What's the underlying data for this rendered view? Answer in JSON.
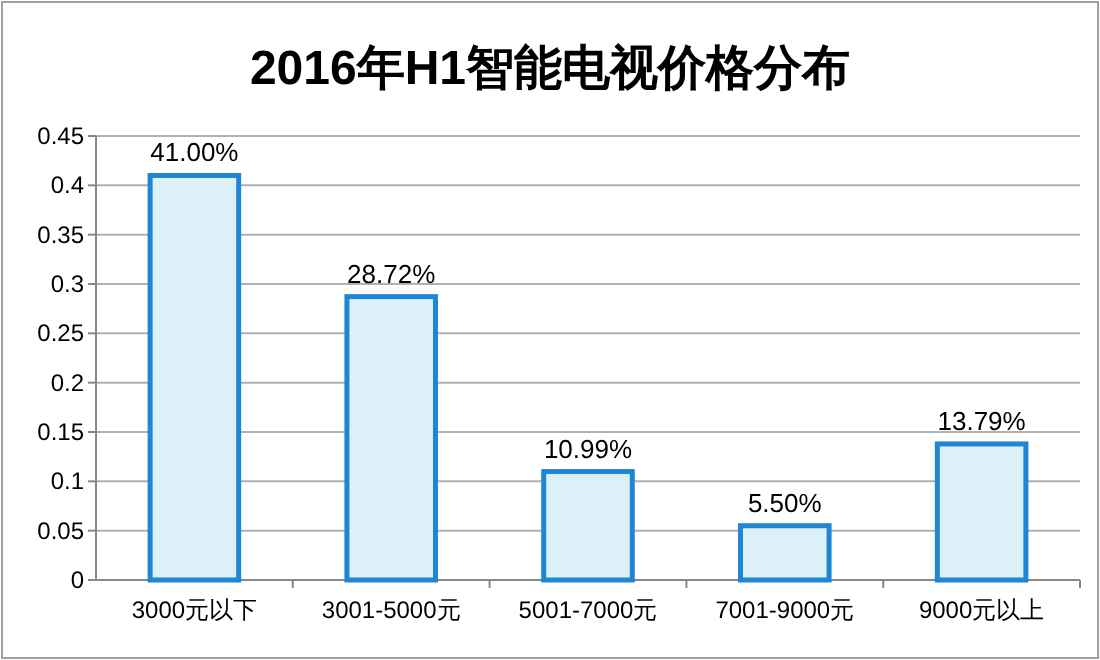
{
  "chart_data": {
    "type": "bar",
    "title": "2016年H1智能电视价格分布",
    "categories": [
      "3000元以下",
      "3001-5000元",
      "5001-7000元",
      "7001-9000元",
      "9000元以上"
    ],
    "values": [
      0.41,
      0.2872,
      0.1099,
      0.055,
      0.1379
    ],
    "value_labels": [
      "41.00%",
      "28.72%",
      "10.99%",
      "5.50%",
      "13.79%"
    ],
    "color": "#dcf0f7",
    "ylim": [
      0,
      0.45
    ],
    "yticks": [
      0,
      0.05,
      0.1,
      0.15,
      0.2,
      0.25,
      0.3,
      0.35,
      0.4,
      0.45
    ],
    "grid": "y"
  }
}
